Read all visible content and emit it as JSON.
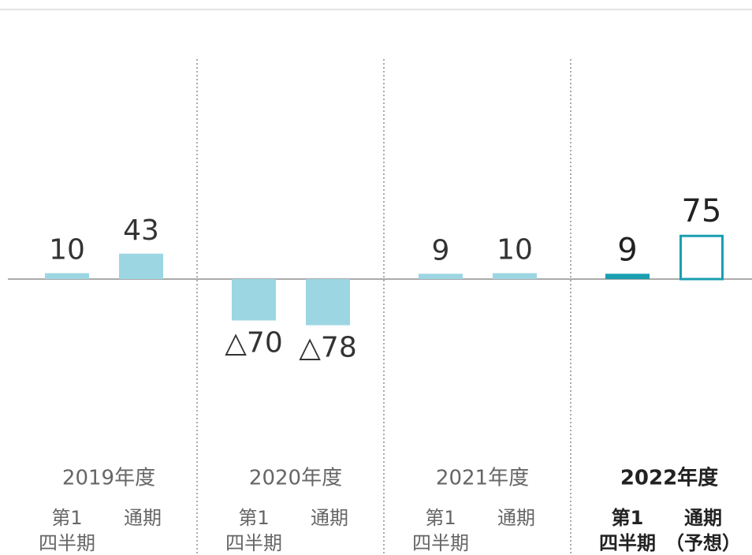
{
  "chart_data": {
    "type": "bar",
    "groups": [
      "2019年度",
      "2020年度",
      "2021年度",
      "2022年度"
    ],
    "categories": [
      [
        "第1",
        "四半期"
      ],
      [
        "通期"
      ],
      [
        "第1",
        "四半期"
      ],
      [
        "通期"
      ],
      [
        "第1",
        "四半期"
      ],
      [
        "通期"
      ],
      [
        "第1",
        "四半期"
      ],
      [
        "通期",
        "（予想）"
      ]
    ],
    "values": [
      10,
      43,
      -70,
      -78,
      9,
      10,
      9,
      75
    ],
    "value_labels": [
      "10",
      "43",
      "△70",
      "△78",
      "9",
      "10",
      "9",
      "75"
    ],
    "bar_styles": [
      "filled",
      "filled",
      "filled",
      "filled",
      "filled",
      "filled",
      "filled",
      "outline"
    ],
    "color": "#9dd6e3",
    "highlight_color": "#1a9fb1",
    "highlight_group": 3,
    "ylim": [
      -200,
      300
    ]
  }
}
